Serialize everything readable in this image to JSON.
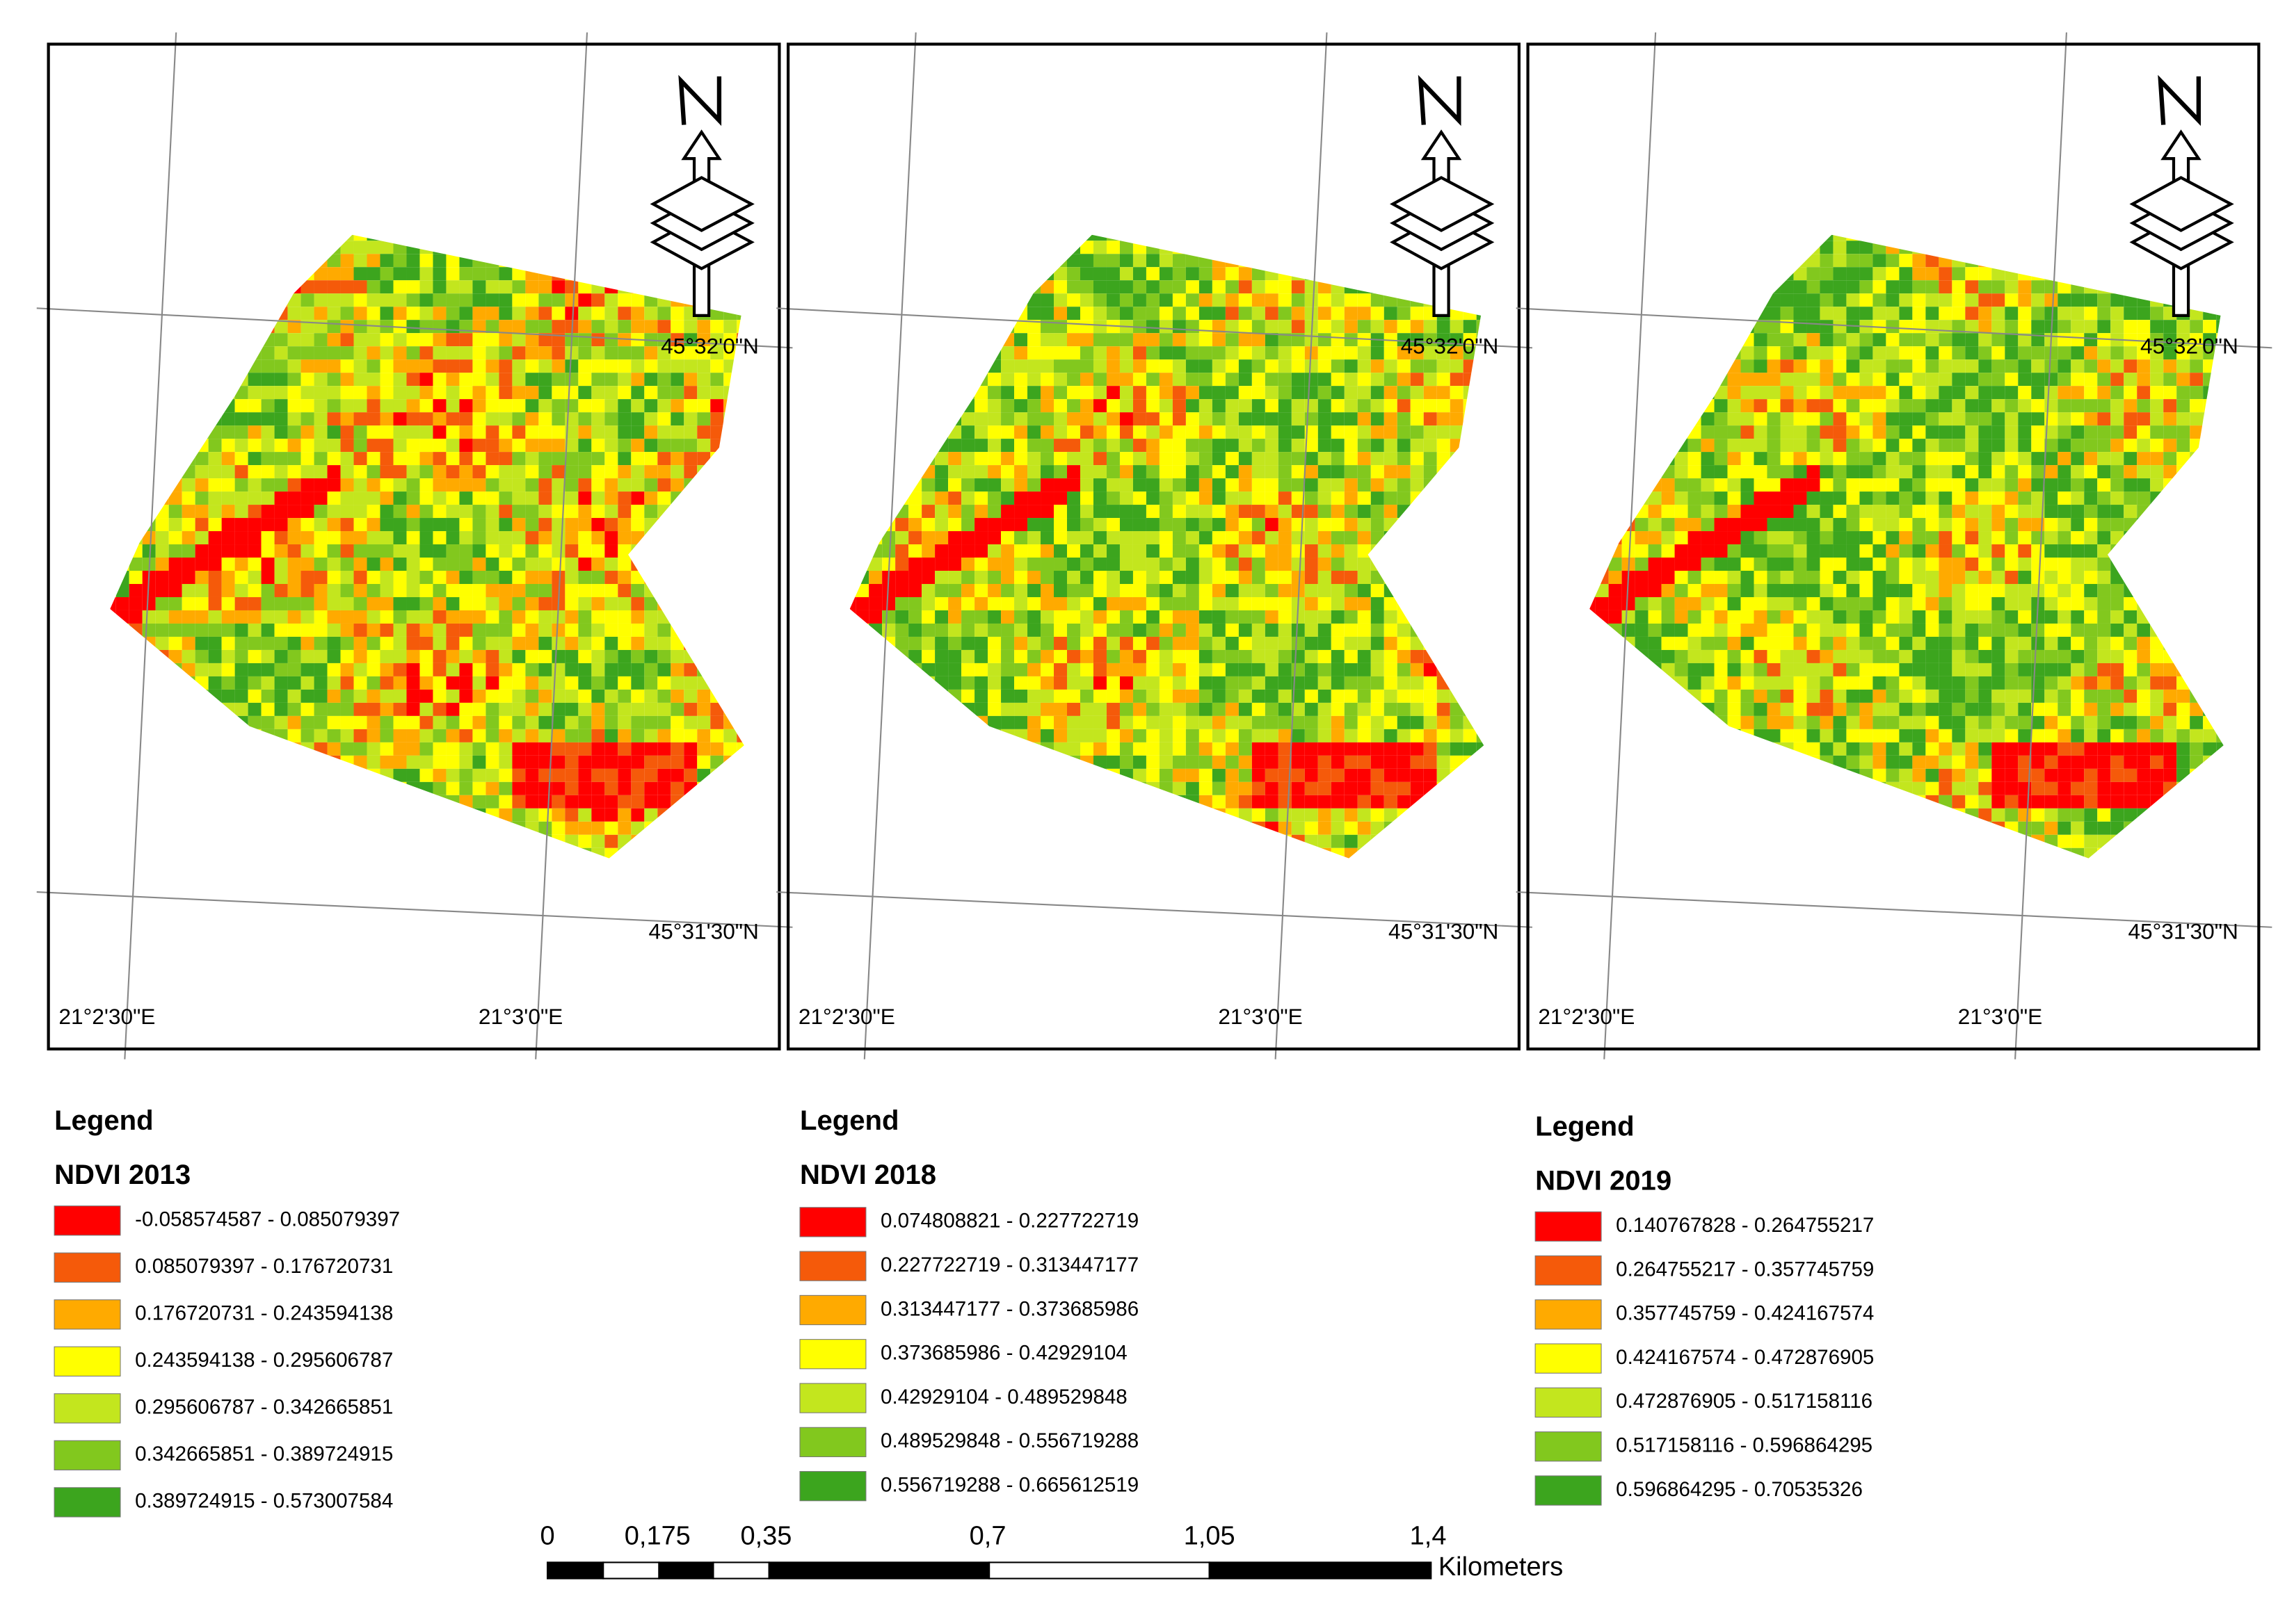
{
  "panels": [
    {
      "legend_heading": "Legend",
      "title": "NDVI 2013",
      "lat_labels": [
        "45°32'0\"N",
        "45°31'30\"N"
      ],
      "lon_labels": [
        "21°2'30\"E",
        "21°3'0\"E"
      ],
      "classes": [
        {
          "label": "-0.058574587 - 0.085079397",
          "color": "#ff0000"
        },
        {
          "label": "0.085079397 - 0.176720731",
          "color": "#f55a0a"
        },
        {
          "label": "0.176720731 - 0.243594138",
          "color": "#ffaa00"
        },
        {
          "label": "0.243594138 - 0.295606787",
          "color": "#ffff00"
        },
        {
          "label": "0.295606787 - 0.342665851",
          "color": "#c3e61e"
        },
        {
          "label": "0.342665851 - 0.389724915",
          "color": "#82c81e"
        },
        {
          "label": "0.389724915 - 0.573007584",
          "color": "#3ca51e"
        }
      ]
    },
    {
      "legend_heading": "Legend",
      "title": "NDVI 2018",
      "lat_labels": [
        "45°32'0\"N",
        "45°31'30\"N"
      ],
      "lon_labels": [
        "21°2'30\"E",
        "21°3'0\"E"
      ],
      "classes": [
        {
          "label": "0.074808821 - 0.227722719",
          "color": "#ff0000"
        },
        {
          "label": "0.227722719 - 0.313447177",
          "color": "#f55a0a"
        },
        {
          "label": "0.313447177 - 0.373685986",
          "color": "#ffaa00"
        },
        {
          "label": "0.373685986 - 0.42929104",
          "color": "#ffff00"
        },
        {
          "label": "0.42929104 - 0.489529848",
          "color": "#c3e61e"
        },
        {
          "label": "0.489529848 - 0.556719288",
          "color": "#82c81e"
        },
        {
          "label": "0.556719288 - 0.665612519",
          "color": "#3ca51e"
        }
      ]
    },
    {
      "legend_heading": "Legend",
      "title": "NDVI 2019",
      "lat_labels": [
        "45°32'0\"N",
        "45°31'30\"N"
      ],
      "lon_labels": [
        "21°2'30\"E",
        "21°3'0\"E"
      ],
      "classes": [
        {
          "label": "0.140767828 - 0.264755217",
          "color": "#ff0000"
        },
        {
          "label": "0.264755217 - 0.357745759",
          "color": "#f55a0a"
        },
        {
          "label": "0.357745759 - 0.424167574",
          "color": "#ffaa00"
        },
        {
          "label": "0.424167574 - 0.472876905",
          "color": "#ffff00"
        },
        {
          "label": "0.472876905 - 0.517158116",
          "color": "#c3e61e"
        },
        {
          "label": "0.517158116 - 0.596864295",
          "color": "#82c81e"
        },
        {
          "label": "0.596864295 - 0.70535326",
          "color": "#3ca51e"
        }
      ]
    }
  ],
  "scale_bar": {
    "labels": [
      "0",
      "0,175",
      "0,35",
      "0,7",
      "1,05",
      "1,4"
    ],
    "unit": "Kilometers"
  }
}
